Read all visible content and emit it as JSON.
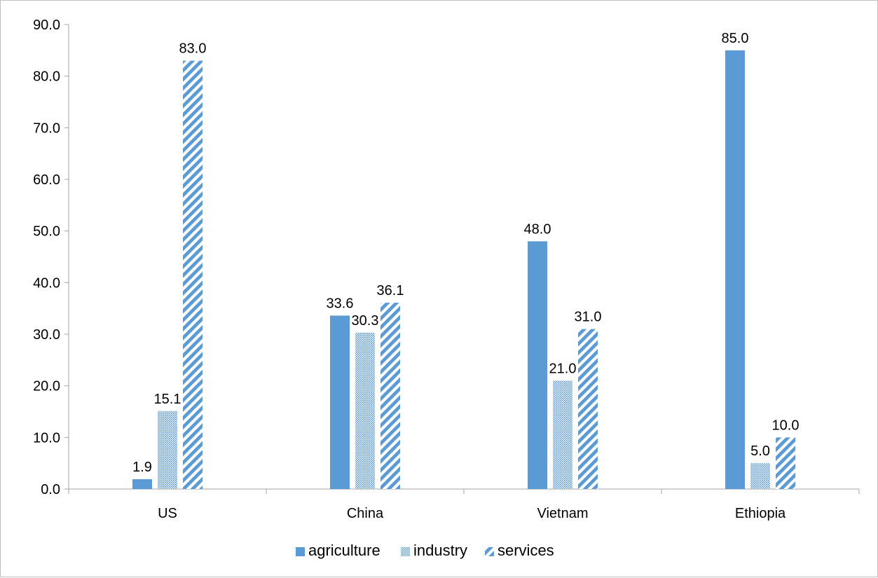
{
  "chart_data": {
    "type": "bar",
    "title": "",
    "xlabel": "",
    "ylabel": "",
    "categories": [
      "US",
      "China",
      "Vietnam",
      "Ethiopia"
    ],
    "series": [
      {
        "name": "agriculture",
        "values": [
          1.9,
          33.6,
          48.0,
          85.0
        ],
        "pattern": "solid",
        "color": "#5b9bd5"
      },
      {
        "name": "industry",
        "values": [
          15.1,
          30.3,
          21.0,
          5.0
        ],
        "pattern": "dotted",
        "color": "#5b9bd5"
      },
      {
        "name": "services",
        "values": [
          83.0,
          36.1,
          31.0,
          10.0
        ],
        "pattern": "diagonal-stripes",
        "color": "#5b9bd5"
      }
    ],
    "ylim": [
      0,
      90
    ],
    "yticks": [
      "0.0",
      "10.0",
      "20.0",
      "30.0",
      "40.0",
      "50.0",
      "60.0",
      "70.0",
      "80.0",
      "90.0"
    ],
    "data_labels": [
      [
        "1.9",
        "33.6",
        "48.0",
        "85.0"
      ],
      [
        "15.1",
        "30.3",
        "21.0",
        "5.0"
      ],
      [
        "83.0",
        "36.1",
        "31.0",
        "10.0"
      ]
    ],
    "grid": false,
    "legend_position": "bottom",
    "axis_color": "#a6a6a6"
  }
}
